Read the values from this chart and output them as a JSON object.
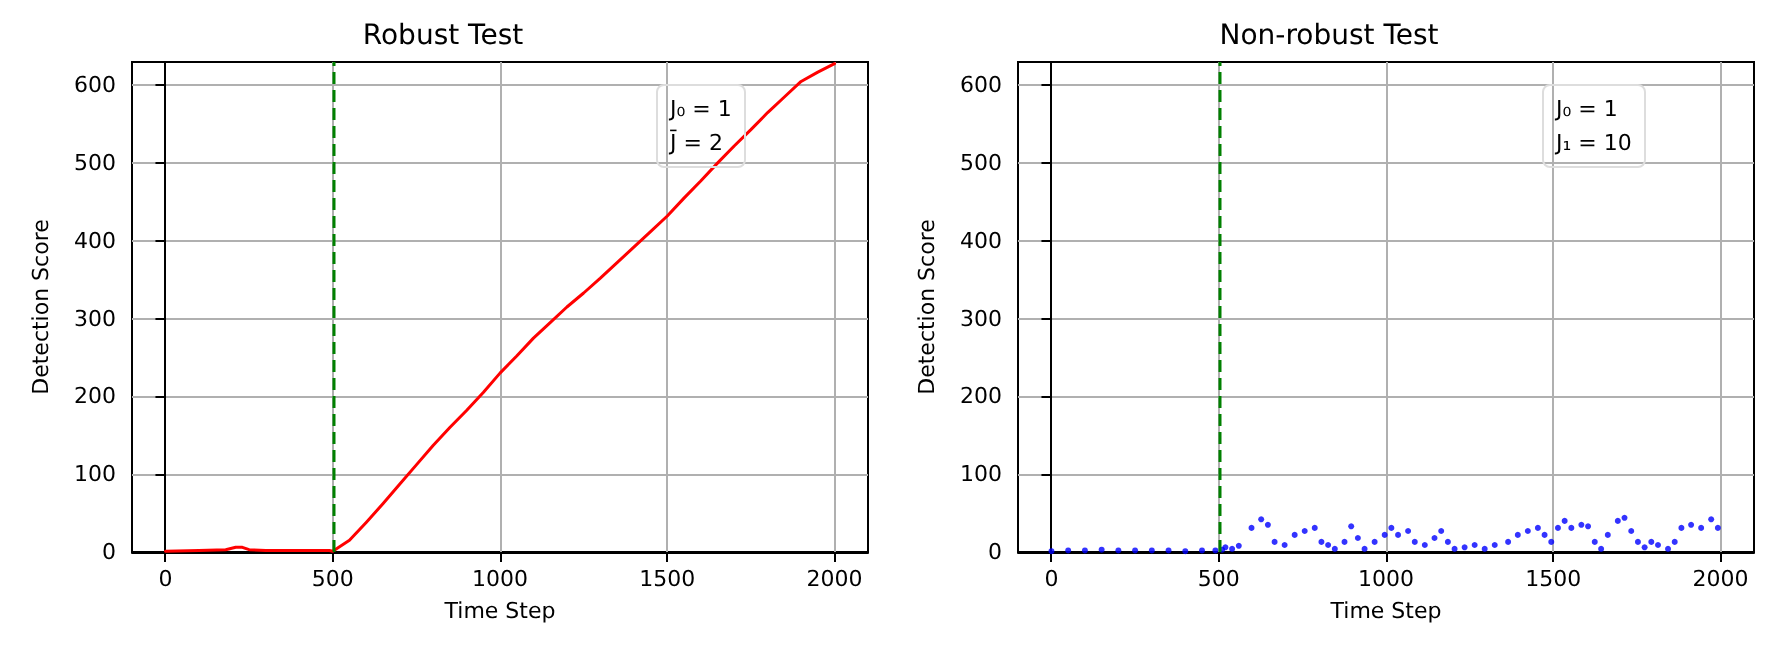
{
  "chart_data": [
    {
      "type": "line",
      "title": "Robust Test",
      "xlabel": "Time Step",
      "ylabel": "Detection Score",
      "x": [
        0,
        100,
        180,
        210,
        230,
        250,
        300,
        400,
        490,
        500,
        550,
        600,
        650,
        700,
        750,
        800,
        850,
        900,
        950,
        1000,
        1050,
        1100,
        1150,
        1200,
        1250,
        1300,
        1350,
        1400,
        1450,
        1500,
        1550,
        1600,
        1650,
        1700,
        1750,
        1800,
        1850,
        1900,
        1950,
        2000
      ],
      "series": [
        {
          "color": "#ff0000",
          "values": [
            1,
            2,
            3,
            6,
            6,
            3,
            2,
            2,
            2,
            1,
            15,
            38,
            62,
            87,
            112,
            137,
            160,
            182,
            205,
            230,
            252,
            275,
            295,
            315,
            333,
            352,
            372,
            392,
            412,
            432,
            455,
            477,
            500,
            522,
            543,
            565,
            585,
            605,
            617,
            628
          ]
        }
      ],
      "xlim": [
        -100,
        2100
      ],
      "ylim": [
        0,
        630
      ],
      "xticks": [
        0,
        500,
        1000,
        1500,
        2000
      ],
      "yticks": [
        0,
        100,
        200,
        300,
        400,
        500,
        600
      ],
      "grid": true,
      "marker": "none",
      "line_style": "solid",
      "ref_lines": [
        {
          "axis": "x",
          "value": 500,
          "color": "#008000",
          "line_style": "dashed"
        }
      ],
      "annotations": [
        "J₀ = 1",
        "J̄ = 2"
      ]
    },
    {
      "type": "scatter",
      "title": "Non-robust Test",
      "xlabel": "Time Step",
      "ylabel": "Detection Score",
      "x": [
        0,
        50,
        100,
        150,
        200,
        250,
        300,
        350,
        400,
        450,
        490,
        510,
        520,
        540,
        560,
        598,
        627,
        647,
        667,
        697,
        727,
        757,
        787,
        807,
        827,
        847,
        876,
        896,
        916,
        936,
        966,
        996,
        1016,
        1036,
        1066,
        1086,
        1116,
        1145,
        1165,
        1185,
        1205,
        1235,
        1265,
        1295,
        1325,
        1365,
        1394,
        1424,
        1454,
        1474,
        1494,
        1514,
        1534,
        1554,
        1584,
        1604,
        1624,
        1643,
        1663,
        1693,
        1713,
        1733,
        1753,
        1773,
        1793,
        1813,
        1843,
        1863,
        1883,
        1912,
        1942,
        1972,
        1992
      ],
      "series": [
        {
          "color": "#0000ff",
          "values": [
            1,
            2,
            2,
            3,
            2,
            2,
            2,
            2,
            1,
            2,
            2,
            3,
            6,
            4,
            8,
            31,
            42,
            35,
            13,
            9,
            22,
            27,
            31,
            13,
            9,
            4,
            13,
            33,
            18,
            4,
            13,
            22,
            31,
            22,
            27,
            13,
            9,
            18,
            27,
            13,
            4,
            6,
            9,
            4,
            9,
            13,
            22,
            27,
            31,
            22,
            13,
            31,
            40,
            31,
            35,
            33,
            13,
            4,
            22,
            40,
            44,
            27,
            13,
            6,
            13,
            9,
            4,
            13,
            31,
            35,
            31,
            42,
            31
          ]
        }
      ],
      "xlim": [
        -100,
        2100
      ],
      "ylim": [
        0,
        630
      ],
      "xticks": [
        0,
        500,
        1000,
        1500,
        2000
      ],
      "yticks": [
        0,
        100,
        200,
        300,
        400,
        500,
        600
      ],
      "grid": true,
      "marker": "circle",
      "ref_lines": [
        {
          "axis": "x",
          "value": 500,
          "color": "#008000",
          "line_style": "dashed"
        }
      ],
      "annotations": [
        "J₀ = 1",
        "J₁ = 10"
      ]
    }
  ]
}
